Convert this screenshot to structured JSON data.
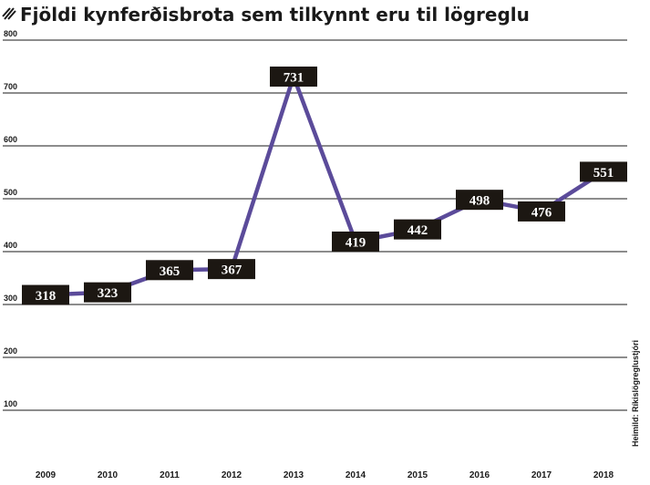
{
  "chart_data": {
    "type": "line",
    "title": "Fjöldi kynferðisbrota sem tilkynnt eru til lögreglu",
    "x": [
      "2009",
      "2010",
      "2011",
      "2012",
      "2013",
      "2014",
      "2015",
      "2016",
      "2017",
      "2018"
    ],
    "series": [
      {
        "values": [
          318,
          323,
          365,
          367,
          731,
          419,
          442,
          498,
          476,
          551
        ]
      }
    ],
    "ylim": [
      0,
      800
    ],
    "yticks": [
      "100",
      "200",
      "300",
      "400",
      "500",
      "600",
      "700",
      "800"
    ],
    "grid": true,
    "source": "Heimild: Ríkislögreglustjóri",
    "colors": {
      "line": "#5b4b9a",
      "label_box": "#1c1712",
      "label_text": "#ffffff",
      "grid": "#1a1a1a"
    }
  }
}
